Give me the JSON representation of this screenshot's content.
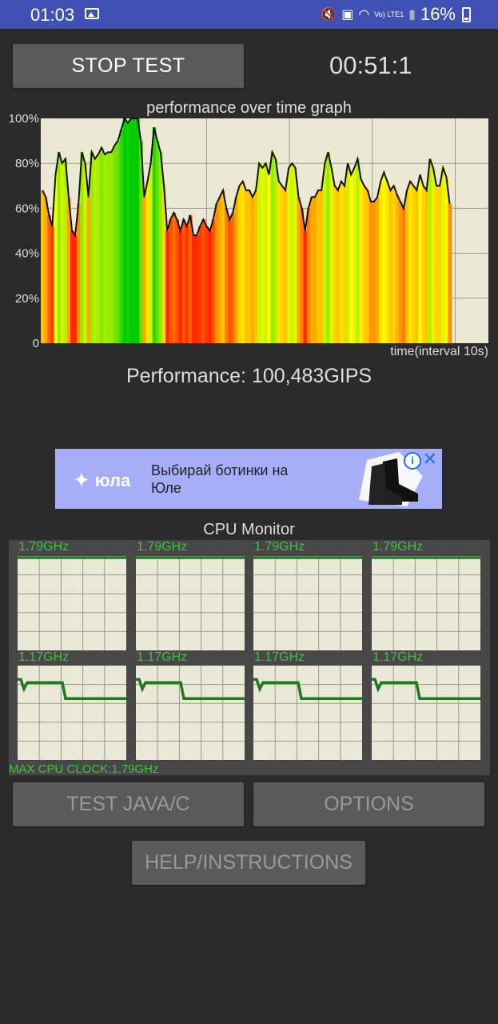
{
  "status_bar": {
    "time": "01:03",
    "battery": "16%",
    "lte": "Vo) LTE1",
    "icons": [
      "image-icon",
      "mute-icon",
      "nfc-icon",
      "wifi-icon",
      "lte-icon",
      "signal-icon",
      "battery-icon"
    ]
  },
  "controls": {
    "stop_label": "STOP TEST",
    "timer": "00:51:1"
  },
  "graph": {
    "title": "performance over time graph",
    "y_ticks": [
      "100%",
      "80%",
      "60%",
      "40%",
      "20%",
      "0"
    ],
    "x_label": "time(interval 10s)"
  },
  "chart_data": {
    "type": "area",
    "title": "performance over time graph",
    "xlabel": "time(interval 10s)",
    "ylabel": "",
    "ylim": [
      0,
      100
    ],
    "y_unit": "%",
    "grid": true,
    "values": [
      68,
      65,
      57,
      52,
      75,
      85,
      80,
      82,
      65,
      50,
      48,
      62,
      85,
      80,
      65,
      85,
      82,
      84,
      87,
      84,
      85,
      85,
      88,
      90,
      95,
      100,
      98,
      100,
      100,
      100,
      90,
      65,
      72,
      80,
      96,
      90,
      85,
      70,
      50,
      55,
      58,
      55,
      50,
      55,
      52,
      57,
      48,
      48,
      52,
      55,
      52,
      50,
      55,
      62,
      65,
      68,
      60,
      55,
      58,
      65,
      70,
      72,
      68,
      68,
      65,
      68,
      80,
      78,
      80,
      75,
      85,
      82,
      72,
      70,
      68,
      78,
      80,
      78,
      65,
      60,
      50,
      60,
      65,
      65,
      68,
      68,
      80,
      85,
      78,
      70,
      68,
      72,
      70,
      80,
      75,
      78,
      82,
      73,
      70,
      68,
      63,
      63,
      65,
      72,
      76,
      72,
      68,
      70,
      66,
      63,
      60,
      68,
      72,
      70,
      68,
      75,
      70,
      68,
      82,
      78,
      70,
      70,
      78,
      74,
      62
    ],
    "color_scale": {
      "low": "#ff2a00",
      "mid": "#ffff00",
      "high": "#00cc00"
    }
  },
  "performance": {
    "text": "Performance: 100,483GIPS"
  },
  "ad": {
    "brand": "юла",
    "text": "Выбирай ботинки на Юле",
    "info": "i",
    "close": "✕"
  },
  "cpu_monitor": {
    "title": "CPU Monitor",
    "max_clock": "MAX CPU CLOCK:1.79GHz",
    "max_ghz": 1.79,
    "cores": [
      {
        "label": "1.79GHz",
        "level": 1.0,
        "pattern": "flat"
      },
      {
        "label": "1.79GHz",
        "level": 1.0,
        "pattern": "flat"
      },
      {
        "label": "1.79GHz",
        "level": 1.0,
        "pattern": "flat"
      },
      {
        "label": "1.79GHz",
        "level": 1.0,
        "pattern": "flat"
      },
      {
        "label": "1.17GHz",
        "level": 0.65,
        "pattern": "step"
      },
      {
        "label": "1.17GHz",
        "level": 0.65,
        "pattern": "step"
      },
      {
        "label": "1.17GHz",
        "level": 0.65,
        "pattern": "step"
      },
      {
        "label": "1.17GHz",
        "level": 0.65,
        "pattern": "step"
      }
    ],
    "colors": {
      "line": "#1f7a1f",
      "label": "#3ec33e",
      "grid": "#eae9d8"
    }
  },
  "buttons": {
    "java": "TEST JAVA/C",
    "options": "OPTIONS",
    "help": "HELP/INSTRUCTIONS"
  }
}
